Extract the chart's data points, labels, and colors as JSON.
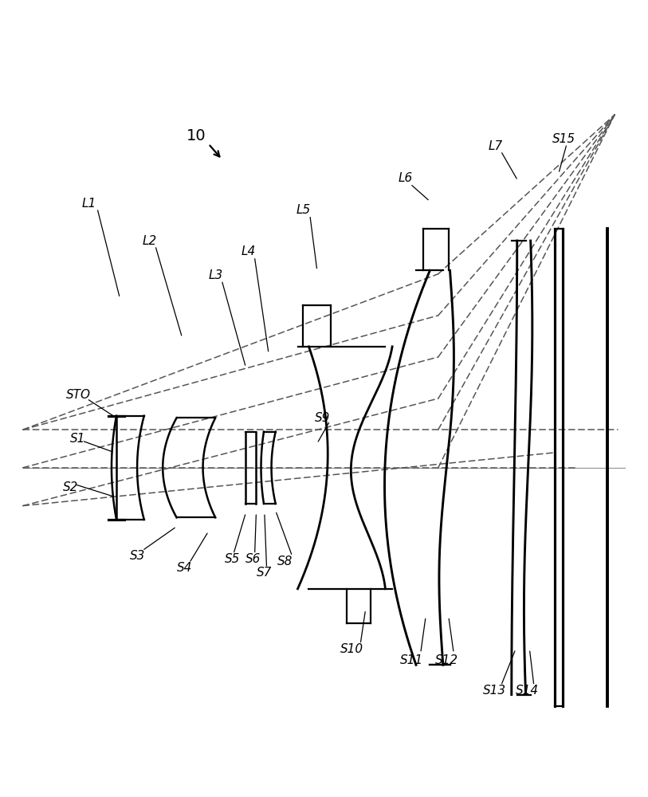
{
  "bg_color": "#ffffff",
  "line_color": "#000000",
  "ray_color": "#555555",
  "lw_lens": 1.8,
  "lw_ray": 1.1,
  "fs_label": 11,
  "xlim": [
    -0.8,
    8.5
  ],
  "ylim": [
    -3.5,
    5.5
  ]
}
